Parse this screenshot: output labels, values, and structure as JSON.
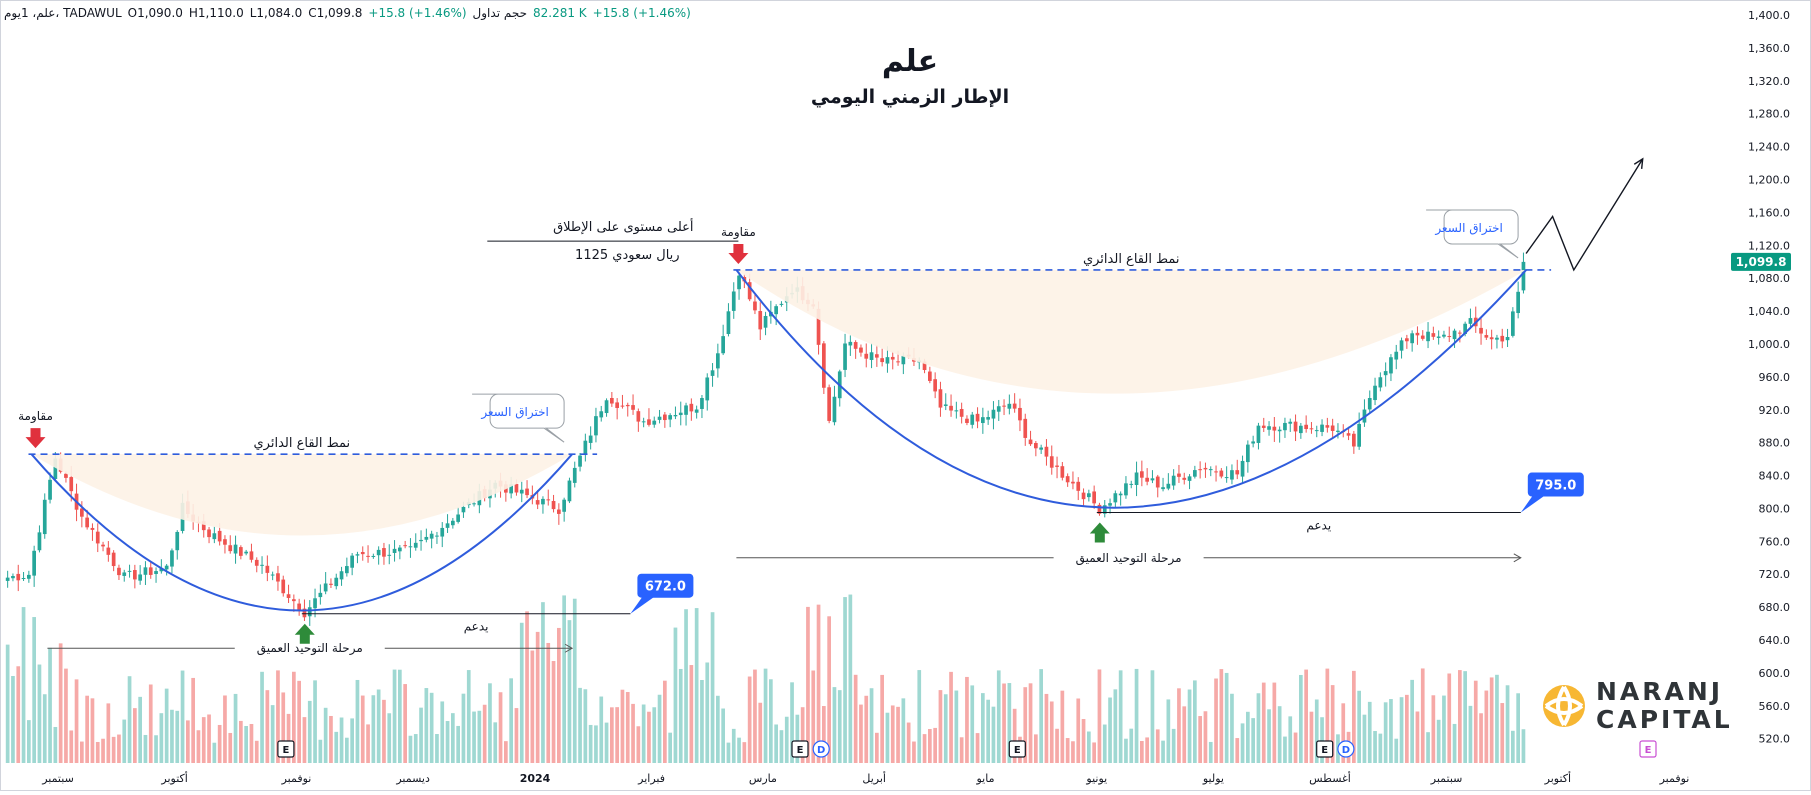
{
  "header": {
    "symbol": "علم، 1يوم، TADAWUL",
    "open": "O1,090.0",
    "high": "H1,110.0",
    "low": "L1,084.0",
    "close": "C1,099.8",
    "change": "+15.8 (+1.46%)",
    "volume_label": "حجم تداول",
    "volume": "82.281 K",
    "volume_change": "+15.8 (+1.46%)"
  },
  "title": "علم",
  "subtitle": "الإطار الزمني اليومي",
  "brand": {
    "line1": "NARANJ",
    "line2": "CAPITAL"
  },
  "colors": {
    "up": "#26a69a",
    "down": "#ef5350",
    "vol_up": "#9fd8d2",
    "vol_down": "#f6a9a7",
    "pattern": "#2f5cdc",
    "fill": "#fdf2e6",
    "resistance_arrow": "#e0313d",
    "support_arrow": "#2e8b3a"
  },
  "chart_data": {
    "type": "candlestick",
    "y_axis": {
      "min": 500,
      "max": 1400,
      "step": 40,
      "side": "right",
      "ticks": [
        "1,400.0",
        "1,360.0",
        "1,320.0",
        "1,280.0",
        "1,240.0",
        "1,200.0",
        "1,160.0",
        "1,120.0",
        "1,080.0",
        "1,040.0",
        "1,000.0",
        "960.0",
        "920.0",
        "880.0",
        "840.0",
        "800.0",
        "760.0",
        "720.0",
        "680.0",
        "640.0",
        "600.0",
        "560.0",
        "520.0"
      ]
    },
    "current_price": {
      "value": 1099.8,
      "label": "1,099.8"
    },
    "x_axis_labels": [
      {
        "label": "سبتمبر",
        "bar": 10
      },
      {
        "label": "أكتوبر",
        "bar": 32
      },
      {
        "label": "نوفمبر",
        "bar": 55
      },
      {
        "label": "ديسمبر",
        "bar": 77
      },
      {
        "label": "2024",
        "bar": 100
      },
      {
        "label": "فبراير",
        "bar": 122
      },
      {
        "label": "مارس",
        "bar": 143
      },
      {
        "label": "أبريل",
        "bar": 164
      },
      {
        "label": "مايو",
        "bar": 185
      },
      {
        "label": "يونيو",
        "bar": 206
      },
      {
        "label": "يوليو",
        "bar": 228
      },
      {
        "label": "أغسطس",
        "bar": 250
      },
      {
        "label": "سبتمبر",
        "bar": 272
      },
      {
        "label": "أكتوبر",
        "bar": 293
      },
      {
        "label": "نوفمبر",
        "bar": 315
      }
    ],
    "bar_count": 287,
    "anchors": [
      {
        "bar": 0,
        "price": 716
      },
      {
        "bar": 4,
        "price": 720
      },
      {
        "bar": 9,
        "price": 862
      },
      {
        "bar": 14,
        "price": 790
      },
      {
        "bar": 22,
        "price": 716
      },
      {
        "bar": 30,
        "price": 728
      },
      {
        "bar": 33,
        "price": 800
      },
      {
        "bar": 38,
        "price": 770
      },
      {
        "bar": 48,
        "price": 730
      },
      {
        "bar": 56,
        "price": 674
      },
      {
        "bar": 66,
        "price": 745
      },
      {
        "bar": 76,
        "price": 748
      },
      {
        "bar": 92,
        "price": 830
      },
      {
        "bar": 104,
        "price": 800
      },
      {
        "bar": 108,
        "price": 862
      },
      {
        "bar": 113,
        "price": 938
      },
      {
        "bar": 120,
        "price": 906
      },
      {
        "bar": 130,
        "price": 925
      },
      {
        "bar": 134,
        "price": 990
      },
      {
        "bar": 138,
        "price": 1090
      },
      {
        "bar": 142,
        "price": 1020
      },
      {
        "bar": 148,
        "price": 1068
      },
      {
        "bar": 152,
        "price": 1050
      },
      {
        "bar": 155,
        "price": 905
      },
      {
        "bar": 158,
        "price": 1000
      },
      {
        "bar": 165,
        "price": 978
      },
      {
        "bar": 172,
        "price": 980
      },
      {
        "bar": 176,
        "price": 922
      },
      {
        "bar": 183,
        "price": 905
      },
      {
        "bar": 189,
        "price": 928
      },
      {
        "bar": 193,
        "price": 880
      },
      {
        "bar": 198,
        "price": 848
      },
      {
        "bar": 206,
        "price": 800
      },
      {
        "bar": 213,
        "price": 838
      },
      {
        "bar": 218,
        "price": 828
      },
      {
        "bar": 225,
        "price": 850
      },
      {
        "bar": 232,
        "price": 842
      },
      {
        "bar": 236,
        "price": 902
      },
      {
        "bar": 244,
        "price": 900
      },
      {
        "bar": 250,
        "price": 898
      },
      {
        "bar": 254,
        "price": 877
      },
      {
        "bar": 258,
        "price": 955
      },
      {
        "bar": 265,
        "price": 1015
      },
      {
        "bar": 270,
        "price": 1005
      },
      {
        "bar": 276,
        "price": 1025
      },
      {
        "bar": 280,
        "price": 1005
      },
      {
        "bar": 283,
        "price": 1010
      },
      {
        "bar": 285,
        "price": 1060
      },
      {
        "bar": 286,
        "price": 1099.8
      }
    ],
    "events": [
      {
        "type": "E",
        "bar": 53
      },
      {
        "type": "E",
        "bar": 150
      },
      {
        "type": "D",
        "bar": 154
      },
      {
        "type": "E",
        "bar": 191
      },
      {
        "type": "E",
        "bar": 249
      },
      {
        "type": "D",
        "bar": 253
      },
      {
        "type": "E",
        "bar": 310
      }
    ],
    "annotations": {
      "left_pattern": {
        "label": "نمط القاع الدائري",
        "resistance_price": 866,
        "start_bar": 5,
        "end_bar": 107,
        "bottom_bar": 56,
        "bottom_price": 672,
        "support_label": "يدعم",
        "support_end_bar": 118,
        "support_value": "672.0",
        "breakout_label": "اختراق السعر",
        "resistance_label": "مقاومة",
        "phase_label": "مرحلة التوحيد العميق",
        "phase_price": 630,
        "phase_start_bar": 8,
        "phase_end_bar": 107
      },
      "right_pattern": {
        "label": "نمط القاع الدائري",
        "resistance_price": 1090,
        "start_bar": 138,
        "end_bar": 287,
        "bottom_bar": 206,
        "bottom_price": 795,
        "support_label": "يدعم",
        "support_end_bar": 286,
        "support_value": "795.0",
        "breakout_label": "اختراق السعر",
        "resistance_label": "مقاومة",
        "phase_label": "مرحلة التوحيد العميق",
        "phase_price": 740,
        "phase_start_bar": 138,
        "phase_end_bar": 286
      },
      "ath": {
        "label": "أعلى مستوى على الإطلاق",
        "value_label": "1125 ريال سعودي",
        "price": 1125,
        "start_bar": 91,
        "end_bar": 138
      },
      "projection": [
        {
          "bar": 287,
          "price": 1110
        },
        {
          "bar": 292,
          "price": 1155
        },
        {
          "bar": 296,
          "price": 1090
        },
        {
          "bar": 309,
          "price": 1225
        }
      ]
    }
  }
}
